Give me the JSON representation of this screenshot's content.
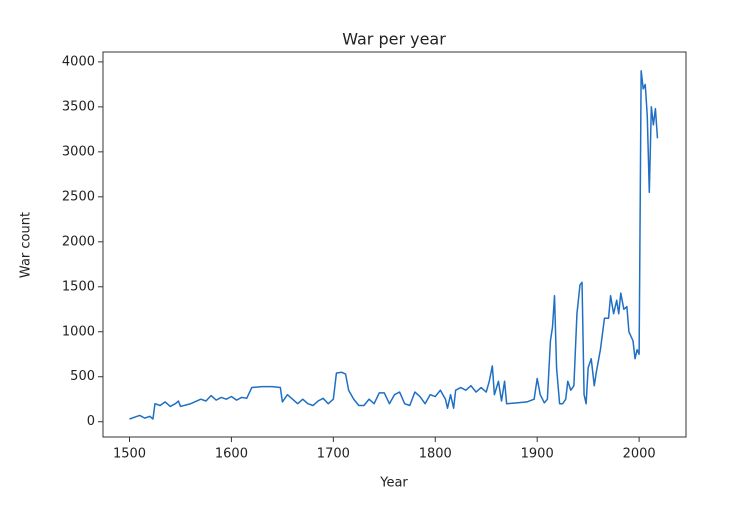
{
  "chart_data": {
    "type": "line",
    "title": "War per year",
    "x_label": "Year",
    "y_label": "War count",
    "x": [
      1500,
      1505,
      1510,
      1515,
      1520,
      1523,
      1525,
      1530,
      1535,
      1540,
      1545,
      1548,
      1550,
      1560,
      1570,
      1575,
      1580,
      1585,
      1590,
      1595,
      1600,
      1605,
      1610,
      1615,
      1620,
      1630,
      1640,
      1648,
      1650,
      1655,
      1660,
      1665,
      1670,
      1675,
      1680,
      1685,
      1690,
      1695,
      1700,
      1703,
      1708,
      1712,
      1715,
      1720,
      1725,
      1730,
      1735,
      1740,
      1745,
      1750,
      1755,
      1760,
      1765,
      1770,
      1775,
      1780,
      1785,
      1790,
      1795,
      1800,
      1805,
      1810,
      1812,
      1815,
      1818,
      1820,
      1825,
      1830,
      1835,
      1840,
      1845,
      1850,
      1853,
      1856,
      1858,
      1862,
      1865,
      1868,
      1870,
      1880,
      1890,
      1897,
      1900,
      1903,
      1907,
      1910,
      1913,
      1915,
      1917,
      1919,
      1922,
      1925,
      1928,
      1930,
      1933,
      1936,
      1939,
      1942,
      1944,
      1946,
      1948,
      1950,
      1953,
      1956,
      1958,
      1962,
      1966,
      1970,
      1972,
      1975,
      1978,
      1980,
      1982,
      1985,
      1988,
      1990,
      1994,
      1996,
      1998,
      2000,
      2002,
      2004,
      2006,
      2008,
      2010,
      2012,
      2014,
      2016,
      2018
    ],
    "series": [
      {
        "name": "War count",
        "color": "#1f6fc4",
        "values": [
          30,
          50,
          70,
          40,
          60,
          30,
          200,
          180,
          220,
          170,
          200,
          230,
          170,
          200,
          250,
          230,
          290,
          240,
          270,
          250,
          280,
          240,
          270,
          260,
          380,
          390,
          390,
          380,
          220,
          300,
          250,
          200,
          250,
          200,
          180,
          230,
          260,
          200,
          250,
          540,
          550,
          530,
          350,
          250,
          180,
          180,
          250,
          200,
          320,
          320,
          200,
          300,
          330,
          200,
          180,
          330,
          280,
          200,
          300,
          280,
          350,
          250,
          150,
          300,
          150,
          350,
          380,
          350,
          400,
          330,
          380,
          330,
          450,
          620,
          300,
          450,
          230,
          450,
          200,
          210,
          220,
          250,
          480,
          300,
          210,
          250,
          900,
          1050,
          1400,
          600,
          200,
          200,
          250,
          450,
          350,
          400,
          1200,
          1520,
          1550,
          300,
          200,
          600,
          700,
          400,
          550,
          800,
          1150,
          1150,
          1400,
          1200,
          1350,
          1200,
          1430,
          1250,
          1280,
          1000,
          900,
          700,
          800,
          750,
          3900,
          3700,
          3750,
          3400,
          2550,
          3500,
          3300,
          3480,
          3150
        ]
      }
    ],
    "xlim": [
      1474,
      2046
    ],
    "ylim": [
      -170,
      4110
    ],
    "xticks": [
      1500,
      1600,
      1700,
      1800,
      1900,
      2000
    ],
    "yticks": [
      0,
      500,
      1000,
      1500,
      2000,
      2500,
      3000,
      3500,
      4000
    ]
  }
}
